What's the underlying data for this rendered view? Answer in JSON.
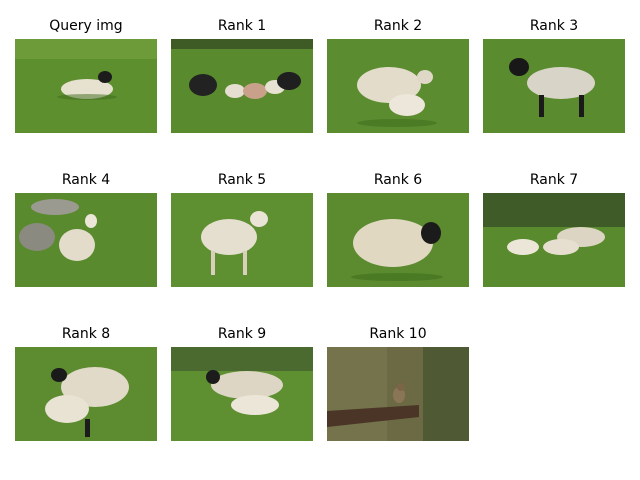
{
  "figure": {
    "panels": [
      {
        "caption": "Query img",
        "subject": "single lying sheep on grass"
      },
      {
        "caption": "Rank 1",
        "subject": "group of sheep and lambs"
      },
      {
        "caption": "Rank 2",
        "subject": "ewe with lamb"
      },
      {
        "caption": "Rank 3",
        "subject": "black-faced lamb standing"
      },
      {
        "caption": "Rank 4",
        "subject": "lamb among rocks"
      },
      {
        "caption": "Rank 5",
        "subject": "white lamb standing"
      },
      {
        "caption": "Rank 6",
        "subject": "woolly black-faced sheep"
      },
      {
        "caption": "Rank 7",
        "subject": "sheep and lambs walking"
      },
      {
        "caption": "Rank 8",
        "subject": "ewe with lamb in front"
      },
      {
        "caption": "Rank 9",
        "subject": "ewe and lamb on pasture"
      },
      {
        "caption": "Rank 10",
        "subject": "small bird on wooden post"
      }
    ]
  },
  "colors": {
    "grass": "#5a8a2e",
    "grass_dark": "#3f6b1f",
    "wool": "#e8e2d2",
    "face_black": "#1a1a1a",
    "blur_bg": "#6b6a45",
    "post": "#4a3526"
  }
}
